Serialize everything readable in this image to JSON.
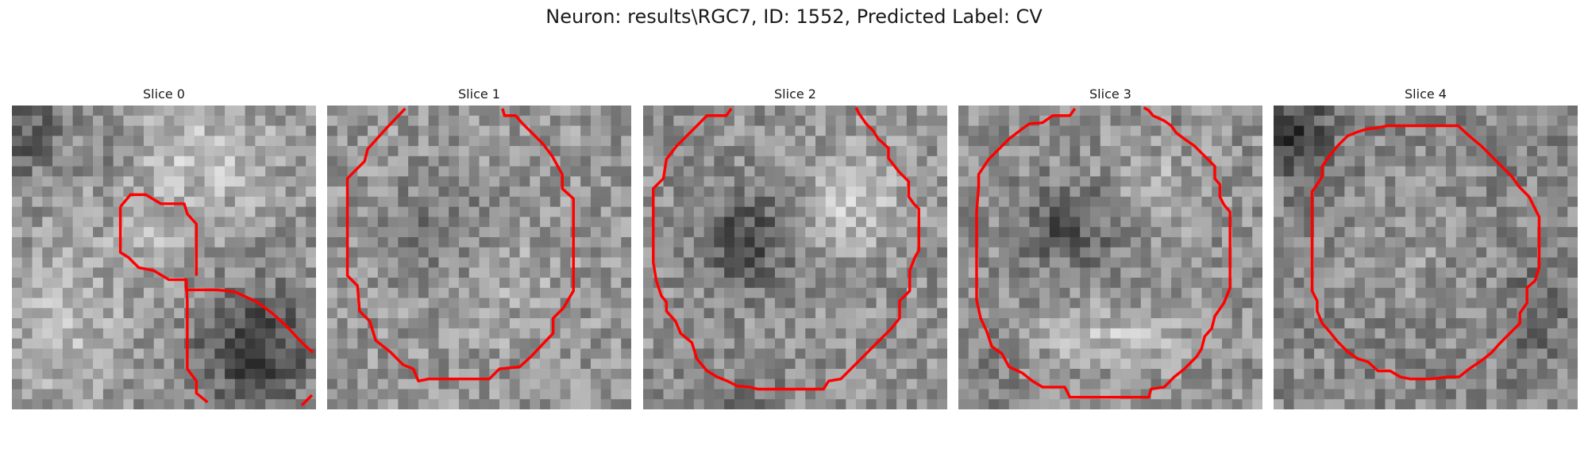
{
  "figure": {
    "title": "Neuron: results\\RGC7, ID: 1552, Predicted Label: CV"
  },
  "panels": [
    {
      "title": "Slice 0",
      "contour_color": "#ff0000",
      "image_theme": "bright-top-right, dark-bottom-right"
    },
    {
      "title": "Slice 1",
      "contour_color": "#ff0000",
      "image_theme": "mid-grey texture"
    },
    {
      "title": "Slice 2",
      "contour_color": "#ff0000",
      "image_theme": "dark-center, bright-right"
    },
    {
      "title": "Slice 3",
      "contour_color": "#ff0000",
      "image_theme": "dark-center-left, bright-bottom"
    },
    {
      "title": "Slice 4",
      "contour_color": "#ff0000",
      "image_theme": "dark-top-left"
    }
  ]
}
